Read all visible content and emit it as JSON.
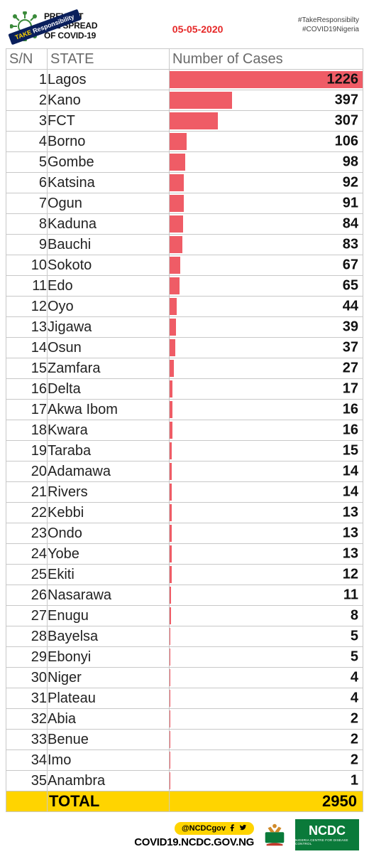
{
  "header": {
    "ribbon_take": "TAKE",
    "ribbon_resp": "Responsibility",
    "slogan_l1": "PREVENT",
    "slogan_l2": "THE SPREAD",
    "slogan_l3": "OF COVID-19",
    "date": "05-05-2020",
    "hashtag1": "#TakeResponsibilty",
    "hashtag2": "#COVID19Nigeria"
  },
  "table": {
    "col_sn": "S/N",
    "col_state": "STATE",
    "col_cases": "Number of Cases",
    "bar_color": "#ef5c66",
    "max_value": 1226,
    "rows": [
      {
        "n": 1,
        "state": "Lagos",
        "cases": 1226
      },
      {
        "n": 2,
        "state": "Kano",
        "cases": 397
      },
      {
        "n": 3,
        "state": "FCT",
        "cases": 307
      },
      {
        "n": 4,
        "state": "Borno",
        "cases": 106
      },
      {
        "n": 5,
        "state": "Gombe",
        "cases": 98
      },
      {
        "n": 6,
        "state": "Katsina",
        "cases": 92
      },
      {
        "n": 7,
        "state": "Ogun",
        "cases": 91
      },
      {
        "n": 8,
        "state": "Kaduna",
        "cases": 84
      },
      {
        "n": 9,
        "state": "Bauchi",
        "cases": 83
      },
      {
        "n": 10,
        "state": "Sokoto",
        "cases": 67
      },
      {
        "n": 11,
        "state": "Edo",
        "cases": 65
      },
      {
        "n": 12,
        "state": "Oyo",
        "cases": 44
      },
      {
        "n": 13,
        "state": "Jigawa",
        "cases": 39
      },
      {
        "n": 14,
        "state": "Osun",
        "cases": 37
      },
      {
        "n": 15,
        "state": "Zamfara",
        "cases": 27
      },
      {
        "n": 16,
        "state": "Delta",
        "cases": 17
      },
      {
        "n": 17,
        "state": "Akwa Ibom",
        "cases": 16
      },
      {
        "n": 18,
        "state": "Kwara",
        "cases": 16
      },
      {
        "n": 19,
        "state": "Taraba",
        "cases": 15
      },
      {
        "n": 20,
        "state": "Adamawa",
        "cases": 14
      },
      {
        "n": 21,
        "state": "Rivers",
        "cases": 14
      },
      {
        "n": 22,
        "state": "Kebbi",
        "cases": 13
      },
      {
        "n": 23,
        "state": "Ondo",
        "cases": 13
      },
      {
        "n": 24,
        "state": "Yobe",
        "cases": 13
      },
      {
        "n": 25,
        "state": "Ekiti",
        "cases": 12
      },
      {
        "n": 26,
        "state": "Nasarawa",
        "cases": 11
      },
      {
        "n": 27,
        "state": "Enugu",
        "cases": 8
      },
      {
        "n": 28,
        "state": "Bayelsa",
        "cases": 5
      },
      {
        "n": 29,
        "state": "Ebonyi",
        "cases": 5
      },
      {
        "n": 30,
        "state": "Niger",
        "cases": 4
      },
      {
        "n": 31,
        "state": "Plateau",
        "cases": 4
      },
      {
        "n": 32,
        "state": "Abia",
        "cases": 2
      },
      {
        "n": 33,
        "state": "Benue",
        "cases": 2
      },
      {
        "n": 34,
        "state": "Imo",
        "cases": 2
      },
      {
        "n": 35,
        "state": "Anambra",
        "cases": 1
      }
    ],
    "total_label": "TOTAL",
    "total_value": 2950,
    "total_bg": "#ffd400"
  },
  "footer": {
    "handle": "@NCDCgov",
    "website": "COVID19.NCDC.GOV.NG",
    "ncdc_label": "NCDC",
    "ncdc_sub": "NIGERIA CENTRE FOR DISEASE CONTROL"
  },
  "colors": {
    "border": "#c8c8c8",
    "bar": "#ef5c66",
    "accent_yellow": "#ffd400",
    "accent_red": "#e62828",
    "ncdc_green": "#0a7a3a",
    "virus_green": "#3a8a3a"
  }
}
